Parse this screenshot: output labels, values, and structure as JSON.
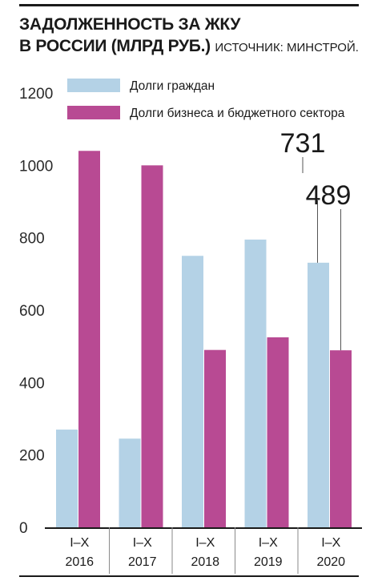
{
  "header": {
    "title_line1": "ЗАДОЛЖЕННОСТЬ ЗА ЖКУ",
    "title_line2": "В РОССИИ (МЛРД РУБ.)",
    "source": "ИСТОЧНИК: МИНСТРОЙ."
  },
  "chart_data": {
    "type": "bar",
    "title": "ЗАДОЛЖЕННОСТЬ ЗА ЖКУ В РОССИИ (МЛРД РУБ.)",
    "categories": [
      {
        "line1": "I–X",
        "line2": "2016"
      },
      {
        "line1": "I–X",
        "line2": "2017"
      },
      {
        "line1": "I–X",
        "line2": "2018"
      },
      {
        "line1": "I–X",
        "line2": "2019"
      },
      {
        "line1": "I–X",
        "line2": "2020"
      }
    ],
    "series": [
      {
        "name": "Долги граждан",
        "color": "#b4d2e6",
        "values": [
          270,
          245,
          750,
          795,
          731
        ]
      },
      {
        "name": "Долги бизнеса и бюджетного сектора",
        "color": "#b84a93",
        "values": [
          1040,
          1000,
          490,
          525,
          489
        ]
      }
    ],
    "ylim": [
      0,
      1200
    ],
    "yticks": [
      "0",
      "200",
      "400",
      "600",
      "800",
      "1000",
      "1200"
    ],
    "ytick_values": [
      0,
      200,
      400,
      600,
      800,
      1000,
      1200
    ],
    "legend_position": "top",
    "annotations": [
      {
        "text": "731",
        "series": 0,
        "category": 4
      },
      {
        "text": "489",
        "series": 1,
        "category": 4
      }
    ]
  }
}
